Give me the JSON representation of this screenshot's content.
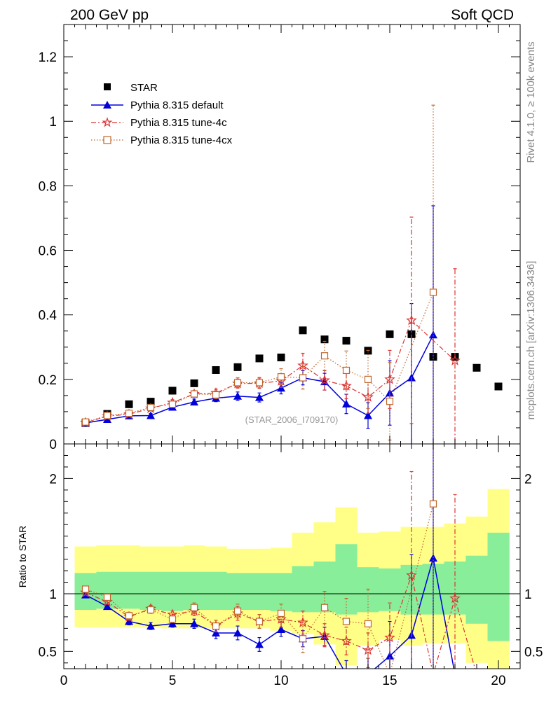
{
  "header": {
    "left": "200 GeV pp",
    "right": "Soft QCD"
  },
  "side_labels": {
    "rivet": "Rivet 4.1.0, ≥ 100k events",
    "mcplots": "mcplots.cern.ch [arXiv:1306.3436]"
  },
  "watermark": "(STAR_2006_I709170)",
  "colors": {
    "star": "#000000",
    "default": "#0000dd",
    "tune4c": "#dd3333",
    "tune4cx": "#c0662b",
    "band_inner": "#88ee99",
    "band_outer": "#ffff88"
  },
  "legend": {
    "star": "STAR",
    "default": "Pythia 8.315 default",
    "tune4c": "Pythia 8.315 tune-4c",
    "tune4cx": "Pythia 8.315 tune-4cx"
  },
  "chart_data": [
    {
      "type": "scatter",
      "title": "",
      "xlabel": "",
      "ylabel": "",
      "xlim": [
        0,
        21
      ],
      "ylim": [
        0,
        1.3
      ],
      "yticks": [
        0,
        0.2,
        0.4,
        0.6,
        0.8,
        1,
        1.2
      ],
      "ytick_labels": [
        "0",
        "0.2",
        "0.4",
        "0.6",
        "0.8",
        "1",
        "1.2"
      ],
      "x": [
        1,
        2,
        3,
        4,
        5,
        6,
        7,
        8,
        9,
        10,
        11,
        12,
        13,
        14,
        15,
        16,
        17,
        18,
        19,
        20
      ],
      "series": [
        {
          "name": "STAR",
          "values": [
            0.065,
            0.093,
            0.123,
            0.131,
            0.165,
            0.188,
            0.229,
            0.238,
            0.265,
            0.268,
            0.352,
            0.324,
            0.32,
            0.289,
            0.34,
            0.34,
            0.27,
            0.27,
            0.236,
            0.178
          ]
        },
        {
          "name": "Pythia 8.315 default",
          "values": [
            0.065,
            0.076,
            0.087,
            0.088,
            0.114,
            0.13,
            0.142,
            0.148,
            0.144,
            0.173,
            0.205,
            0.193,
            0.124,
            0.088,
            0.158,
            0.205,
            0.338,
            null,
            null,
            null
          ],
          "err": [
            0.005,
            0.005,
            0.006,
            0.006,
            0.008,
            0.009,
            0.011,
            0.013,
            0.014,
            0.018,
            0.022,
            0.026,
            0.03,
            0.04,
            0.1,
            0.23,
            0.4,
            null,
            null,
            null
          ]
        },
        {
          "name": "Pythia 8.315 tune-4c",
          "values": [
            0.066,
            0.086,
            0.092,
            0.11,
            0.128,
            0.155,
            0.158,
            0.187,
            0.188,
            0.195,
            0.243,
            0.197,
            0.18,
            0.145,
            0.2,
            0.383,
            null,
            0.258,
            null,
            null
          ],
          "err": [
            0.005,
            0.005,
            0.006,
            0.007,
            0.009,
            0.01,
            0.012,
            0.014,
            0.016,
            0.02,
            0.038,
            0.03,
            0.04,
            0.05,
            0.09,
            0.32,
            null,
            0.285,
            null,
            null
          ]
        },
        {
          "name": "Pythia 8.315 tune-4cx",
          "values": [
            0.068,
            0.088,
            0.095,
            0.113,
            0.123,
            0.155,
            0.152,
            0.19,
            0.19,
            0.208,
            0.205,
            0.273,
            0.228,
            0.2,
            0.132,
            null,
            0.47,
            null,
            null,
            null
          ],
          "err": [
            0.005,
            0.005,
            0.006,
            0.007,
            0.009,
            0.01,
            0.012,
            0.015,
            0.016,
            0.025,
            0.035,
            0.045,
            0.06,
            0.09,
            0.12,
            null,
            0.58,
            null,
            null,
            null
          ]
        }
      ]
    },
    {
      "type": "scatter",
      "title": "",
      "xlabel": "",
      "ylabel": "Ratio to STAR",
      "xlim": [
        0,
        21
      ],
      "ylim": [
        0.35,
        2.3
      ],
      "xticks": [
        0,
        5,
        10,
        15,
        20
      ],
      "xtick_labels": [
        "0",
        "5",
        "10",
        "15",
        "20"
      ],
      "yticks": [
        0.5,
        1,
        2
      ],
      "ytick_labels": [
        "0.5",
        "1",
        "2"
      ],
      "x": [
        1,
        2,
        3,
        4,
        5,
        6,
        7,
        8,
        9,
        10,
        11,
        12,
        13,
        14,
        15,
        16,
        17,
        18,
        19,
        20
      ],
      "band_inner": [
        [
          0.86,
          1.18
        ],
        [
          0.87,
          1.19
        ],
        [
          0.87,
          1.19
        ],
        [
          0.86,
          1.19
        ],
        [
          0.85,
          1.19
        ],
        [
          0.86,
          1.19
        ],
        [
          0.86,
          1.19
        ],
        [
          0.86,
          1.18
        ],
        [
          0.86,
          1.18
        ],
        [
          0.85,
          1.18
        ],
        [
          0.84,
          1.24
        ],
        [
          0.84,
          1.28
        ],
        [
          0.82,
          1.43
        ],
        [
          0.84,
          1.23
        ],
        [
          0.85,
          1.22
        ],
        [
          0.82,
          1.25
        ],
        [
          0.82,
          1.26
        ],
        [
          0.82,
          1.28
        ],
        [
          0.74,
          1.33
        ],
        [
          0.59,
          1.53
        ]
      ],
      "band_outer": [
        [
          0.71,
          1.41
        ],
        [
          0.71,
          1.42
        ],
        [
          0.71,
          1.42
        ],
        [
          0.71,
          1.41
        ],
        [
          0.7,
          1.41
        ],
        [
          0.7,
          1.42
        ],
        [
          0.7,
          1.41
        ],
        [
          0.7,
          1.39
        ],
        [
          0.7,
          1.39
        ],
        [
          0.68,
          1.4
        ],
        [
          0.65,
          1.53
        ],
        [
          0.56,
          1.62
        ],
        [
          0.38,
          1.75
        ],
        [
          0.55,
          1.53
        ],
        [
          0.6,
          1.54
        ],
        [
          0.55,
          1.58
        ],
        [
          0.57,
          1.58
        ],
        [
          0.57,
          1.61
        ],
        [
          0.4,
          1.67
        ],
        [
          0.35,
          1.91
        ]
      ],
      "series": [
        {
          "name": "Pythia 8.315 default",
          "values": [
            0.99,
            0.89,
            0.76,
            0.72,
            0.74,
            0.74,
            0.66,
            0.66,
            0.56,
            0.69,
            0.61,
            0.63,
            0.3,
            0.3,
            0.46,
            0.64,
            1.31,
            0.3,
            null,
            null
          ],
          "err": [
            0.02,
            0.02,
            0.03,
            0.03,
            0.03,
            0.04,
            0.05,
            0.06,
            0.06,
            0.06,
            0.07,
            0.08,
            0.12,
            0.14,
            0.3,
            0.7,
            1.2,
            null,
            null,
            null
          ]
        },
        {
          "name": "Pythia 8.315 tune-4c",
          "values": [
            1.01,
            0.93,
            0.8,
            0.87,
            0.82,
            0.85,
            0.72,
            0.83,
            0.76,
            0.78,
            0.75,
            0.64,
            0.59,
            0.51,
            0.62,
            1.16,
            0.3,
            0.96,
            0.3,
            null
          ],
          "err": [
            0.02,
            0.02,
            0.03,
            0.03,
            0.03,
            0.04,
            0.05,
            0.06,
            0.06,
            0.07,
            0.1,
            0.1,
            0.12,
            0.15,
            0.3,
            0.9,
            null,
            0.9,
            null,
            null
          ]
        },
        {
          "name": "Pythia 8.315 tune-4cx",
          "values": [
            1.04,
            0.97,
            0.81,
            0.86,
            0.78,
            0.88,
            0.72,
            0.85,
            0.76,
            0.83,
            0.61,
            0.88,
            0.76,
            0.74,
            0.3,
            null,
            1.78,
            null,
            null,
            null
          ],
          "err": [
            0.02,
            0.02,
            0.03,
            0.03,
            0.03,
            0.04,
            0.05,
            0.06,
            0.06,
            0.08,
            0.12,
            0.14,
            0.2,
            0.3,
            null,
            null,
            2.0,
            null,
            null,
            null
          ]
        }
      ]
    }
  ]
}
